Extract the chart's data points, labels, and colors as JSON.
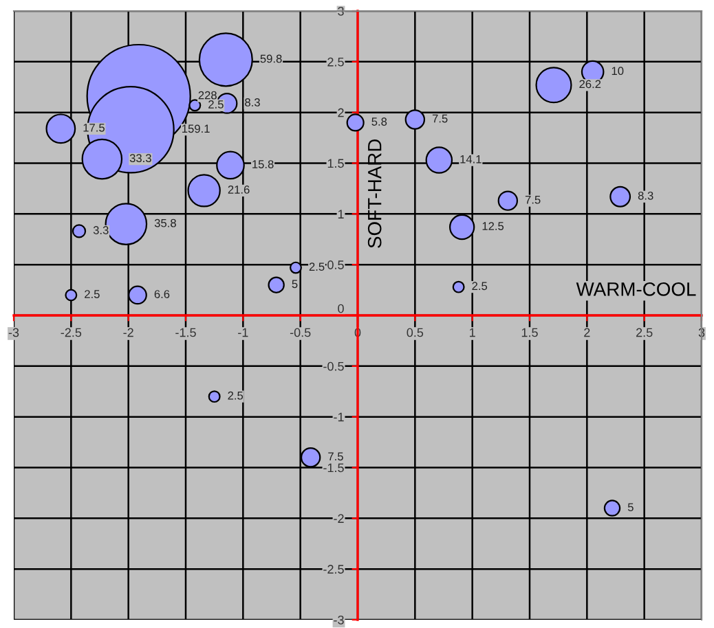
{
  "chart_data": {
    "type": "bubble",
    "xlabel": "WARM-COOL",
    "ylabel": "SOFT-HARD",
    "xlim": [
      -3,
      3
    ],
    "ylim": [
      -3,
      3
    ],
    "xticks": [
      -3,
      -2.5,
      -2,
      -1.5,
      -1,
      -0.5,
      0,
      0.5,
      1,
      1.5,
      2,
      2.5,
      3
    ],
    "yticks": [
      -3,
      -2.5,
      -2,
      -1.5,
      -1,
      -0.5,
      0,
      0.5,
      1,
      1.5,
      2,
      2.5,
      3
    ],
    "grid": true,
    "series": [
      {
        "color": "#9999ff",
        "x": [
          -1.91,
          -1.98,
          -1.15,
          -1.42,
          -1.14,
          -2.59,
          -2.23,
          -1.11,
          -1.34,
          -2.02,
          -2.43,
          -2.5,
          -1.92,
          -0.71,
          -0.54,
          -0.02,
          0.5,
          0.71,
          1.31,
          0.91,
          0.88,
          1.71,
          2.05,
          2.29,
          -1.25,
          -0.41,
          2.22
        ],
        "values": [
          2.16,
          1.83,
          2.52,
          2.07,
          2.09,
          1.84,
          1.54,
          1.48,
          1.23,
          0.9,
          0.83,
          0.2,
          0.2,
          0.3,
          0.47,
          1.9,
          1.93,
          1.53,
          1.13,
          0.87,
          0.28,
          2.27,
          2.4,
          1.17,
          -0.8,
          -1.4,
          -1.9
        ],
        "sizes": [
          228,
          159.1,
          59.8,
          2.5,
          8.3,
          17.5,
          33.3,
          15.8,
          21.6,
          35.8,
          3.3,
          2.5,
          6.6,
          5,
          2.5,
          5.8,
          7.5,
          14.1,
          7.5,
          12.5,
          2.5,
          26.2,
          10,
          8.3,
          2.5,
          7.5,
          5
        ],
        "value_labels": [
          "228",
          "159.1",
          "59.8",
          "2.5",
          "8.3",
          "17.5",
          "33.3",
          "15.8",
          "21.6",
          "35.8",
          "3.3",
          "2.5",
          "6.6",
          "5",
          "2.5",
          "5.8",
          "7.5",
          "14.1",
          "7.5",
          "12.5",
          "2.5",
          "26.2",
          "10",
          "8.3",
          "2.5",
          "7.5",
          "5"
        ]
      }
    ]
  }
}
